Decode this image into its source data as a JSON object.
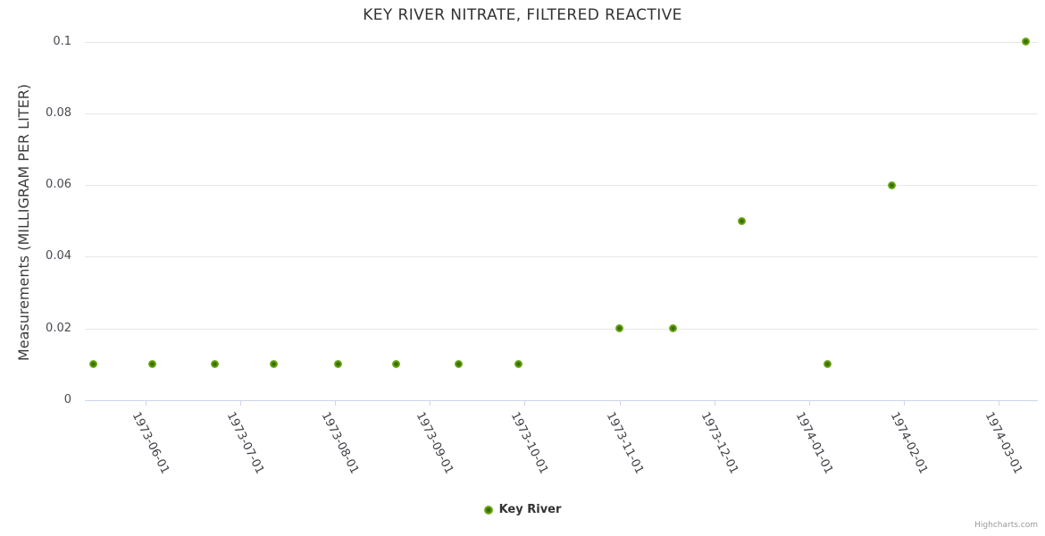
{
  "chart_data": {
    "type": "scatter",
    "title": "KEY RIVER NITRATE, FILTERED REACTIVE",
    "xlabel": "",
    "ylabel": "Measurements (MILLIGRAM PER LITER)",
    "ylim": [
      0,
      0.1
    ],
    "yticks": [
      0,
      0.02,
      0.04,
      0.06,
      0.08,
      0.1
    ],
    "xtick_labels": [
      "1973-06-01",
      "1973-07-01",
      "1973-08-01",
      "1973-09-01",
      "1973-10-01",
      "1973-11-01",
      "1973-12-01",
      "1974-01-01",
      "1974-02-01",
      "1974-03-01"
    ],
    "grid": true,
    "legend_position": "bottom-center",
    "series": [
      {
        "name": "Key River",
        "color": "#417a00",
        "points": [
          {
            "date": "1973-05-15",
            "value": 0.01
          },
          {
            "date": "1973-06-03",
            "value": 0.01
          },
          {
            "date": "1973-06-23",
            "value": 0.01
          },
          {
            "date": "1973-07-12",
            "value": 0.01
          },
          {
            "date": "1973-08-02",
            "value": 0.01
          },
          {
            "date": "1973-08-21",
            "value": 0.01
          },
          {
            "date": "1973-09-10",
            "value": 0.01
          },
          {
            "date": "1973-09-29",
            "value": 0.01
          },
          {
            "date": "1973-11-01",
            "value": 0.02
          },
          {
            "date": "1973-11-18",
            "value": 0.02
          },
          {
            "date": "1973-12-10",
            "value": 0.05
          },
          {
            "date": "1974-01-07",
            "value": 0.01
          },
          {
            "date": "1974-01-28",
            "value": 0.06
          },
          {
            "date": "1974-03-10",
            "value": 0.1
          }
        ]
      }
    ]
  },
  "credit": "Highcharts.com",
  "colors": {
    "grid": "#e6e6e6",
    "axis_line": "#ccd6eb",
    "title": "#333333",
    "tick_labels": "#4a4a52",
    "marker_core": "#2f5f02",
    "marker_rim": "#8cc63e",
    "credit": "#999999"
  }
}
